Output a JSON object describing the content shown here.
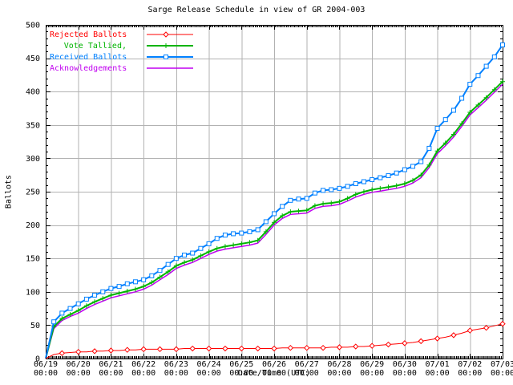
{
  "page": {
    "title": "Sarge Release Schedule in view of GR 2004-003"
  },
  "chart_data": {
    "type": "line",
    "title": "Sarge Release Schedule in view of GR 2004-003",
    "xlabel": "Date/Time (UTC)",
    "ylabel": "Ballots",
    "ylim": [
      0,
      500
    ],
    "y_tick_step": 50,
    "y_minor_step": 10,
    "grid": true,
    "grid_color": "#b2b2b2",
    "legend_position": "top-left",
    "x_span_days": 14,
    "x_step_days": 0.25,
    "x_minor_step_hours": 1,
    "x_tick_dates": [
      "06/19",
      "06/20",
      "06/21",
      "06/22",
      "06/23",
      "06/24",
      "06/25",
      "06/26",
      "06/27",
      "06/28",
      "06/29",
      "06/30",
      "07/01",
      "07/02",
      "07/03"
    ],
    "x_tick_time": "00:00",
    "draw_order": [
      3,
      1,
      2,
      0
    ],
    "series": [
      {
        "name": "Rejected Ballots",
        "color": "#ff0000",
        "marker": "diamond",
        "marker_every": 2,
        "line_width": 1,
        "values": [
          0,
          6,
          8,
          9,
          10,
          10,
          11,
          11,
          12,
          12,
          13,
          13,
          14,
          14,
          14,
          14,
          14,
          15,
          15,
          15,
          15,
          15,
          15,
          15,
          15,
          15,
          15,
          15,
          15,
          16,
          16,
          16,
          16,
          16,
          16,
          17,
          17,
          17,
          18,
          18,
          19,
          20,
          21,
          22,
          23,
          24,
          26,
          28,
          30,
          32,
          35,
          38,
          42,
          44,
          46,
          49,
          52
        ]
      },
      {
        "name": "Vote Tallied,",
        "color": "#00b400",
        "marker": "plus",
        "marker_every": 1,
        "line_width": 2,
        "values": [
          0,
          48,
          60,
          66,
          72,
          79,
          85,
          90,
          95,
          98,
          101,
          104,
          108,
          114,
          122,
          130,
          139,
          144,
          148,
          154,
          160,
          165,
          168,
          170,
          172,
          174,
          177,
          190,
          204,
          214,
          220,
          221,
          222,
          229,
          232,
          233,
          235,
          240,
          246,
          250,
          253,
          255,
          257,
          259,
          262,
          267,
          275,
          290,
          311,
          323,
          336,
          352,
          369,
          380,
          391,
          403,
          415
        ]
      },
      {
        "name": "Received Ballots",
        "color": "#0080ff",
        "marker": "square",
        "marker_every": 1,
        "line_width": 2,
        "values": [
          0,
          55,
          68,
          75,
          82,
          89,
          95,
          100,
          105,
          108,
          112,
          115,
          118,
          124,
          132,
          141,
          150,
          155,
          158,
          165,
          172,
          180,
          185,
          187,
          188,
          190,
          193,
          205,
          217,
          228,
          237,
          239,
          240,
          248,
          252,
          253,
          255,
          258,
          262,
          265,
          268,
          271,
          274,
          278,
          283,
          288,
          295,
          315,
          345,
          358,
          372,
          390,
          411,
          424,
          438,
          452,
          470
        ]
      },
      {
        "name": "Acknowledgements",
        "color": "#c000f0",
        "marker": "none",
        "marker_every": 0,
        "line_width": 1.5,
        "values": [
          0,
          45,
          57,
          63,
          68,
          75,
          81,
          86,
          91,
          94,
          97,
          100,
          104,
          110,
          118,
          126,
          135,
          140,
          144,
          150,
          156,
          161,
          164,
          166,
          168,
          170,
          173,
          186,
          200,
          210,
          216,
          217,
          218,
          225,
          228,
          229,
          231,
          236,
          242,
          246,
          249,
          251,
          253,
          255,
          258,
          263,
          271,
          286,
          307,
          319,
          332,
          348,
          365,
          376,
          387,
          399,
          411
        ]
      }
    ]
  }
}
